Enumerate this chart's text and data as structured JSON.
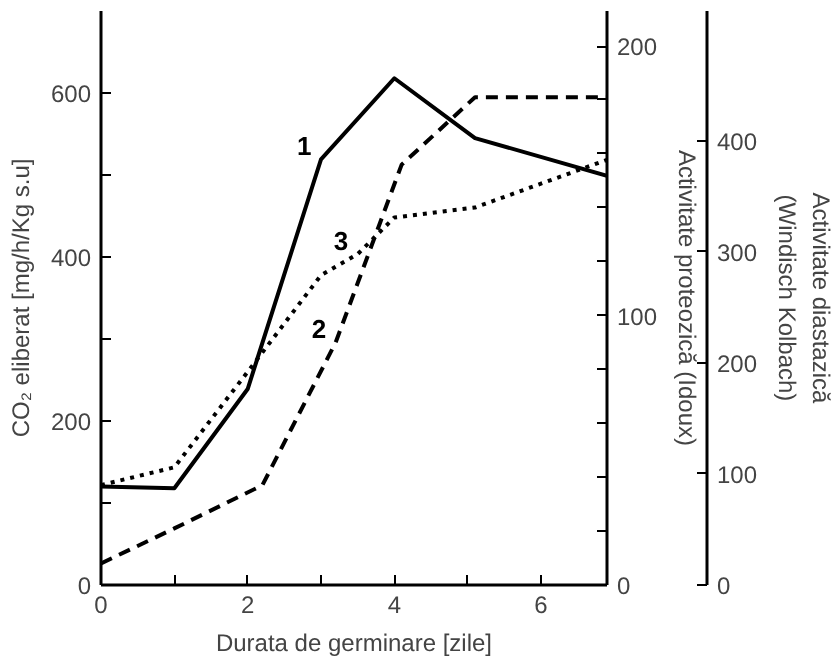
{
  "chart_data": {
    "type": "line",
    "xlabel": "Durata de germinare [zile]",
    "ylabel": "CO₂ eliberat [mg/h/Kg s.u]",
    "y2label": "Activitate proteozică (Idoux)",
    "y3label": "Activitate diastazică\n(Windisch Kolbach)",
    "xlim": [
      0,
      6.9
    ],
    "xticks": [
      0,
      {
        "value": 1,
        "label": null
      },
      2,
      {
        "value": 3,
        "label": null
      },
      4,
      {
        "value": 5,
        "label": null
      },
      6
    ],
    "ylim": [
      0,
      700
    ],
    "yticks": [
      0,
      {
        "value": 100,
        "label": null
      },
      200,
      {
        "value": 300,
        "label": null
      },
      400,
      {
        "value": 500,
        "label": null
      },
      600
    ],
    "y2lim": [
      0,
      213
    ],
    "y2ticks": [
      0,
      {
        "value": 20,
        "label": null
      },
      {
        "value": 40,
        "label": null
      },
      {
        "value": 60,
        "label": null
      },
      {
        "value": 80,
        "label": null
      },
      100,
      {
        "value": 120,
        "label": null
      },
      {
        "value": 140,
        "label": null
      },
      {
        "value": 160,
        "label": null
      },
      {
        "value": 180,
        "label": null
      },
      200
    ],
    "y3lim": [
      0,
      517
    ],
    "y3ticks": [
      0,
      100,
      200,
      300,
      400
    ],
    "grid": false,
    "series": [
      {
        "name": "1",
        "color": "#000000",
        "line_style": "solid",
        "x": [
          0,
          1,
          2,
          3,
          4,
          5.1,
          6.9
        ],
        "values": [
          120,
          118,
          239,
          519,
          618,
          545,
          499
        ]
      },
      {
        "name": "2",
        "color": "#000000",
        "line_style": "dashed",
        "axis": "y2",
        "x": [
          0,
          1,
          2.2,
          3.2,
          4.1,
          5.1,
          6.9
        ],
        "values": [
          8,
          21,
          37,
          90,
          156,
          181,
          181
        ]
      },
      {
        "name": "3",
        "color": "#000000",
        "line_style": "dotted",
        "axis": "y3",
        "x": [
          0,
          1,
          2,
          3,
          3.5,
          4,
          5.1,
          6.9
        ],
        "values": [
          90,
          106,
          192,
          279,
          298,
          331,
          340,
          383
        ]
      }
    ]
  }
}
